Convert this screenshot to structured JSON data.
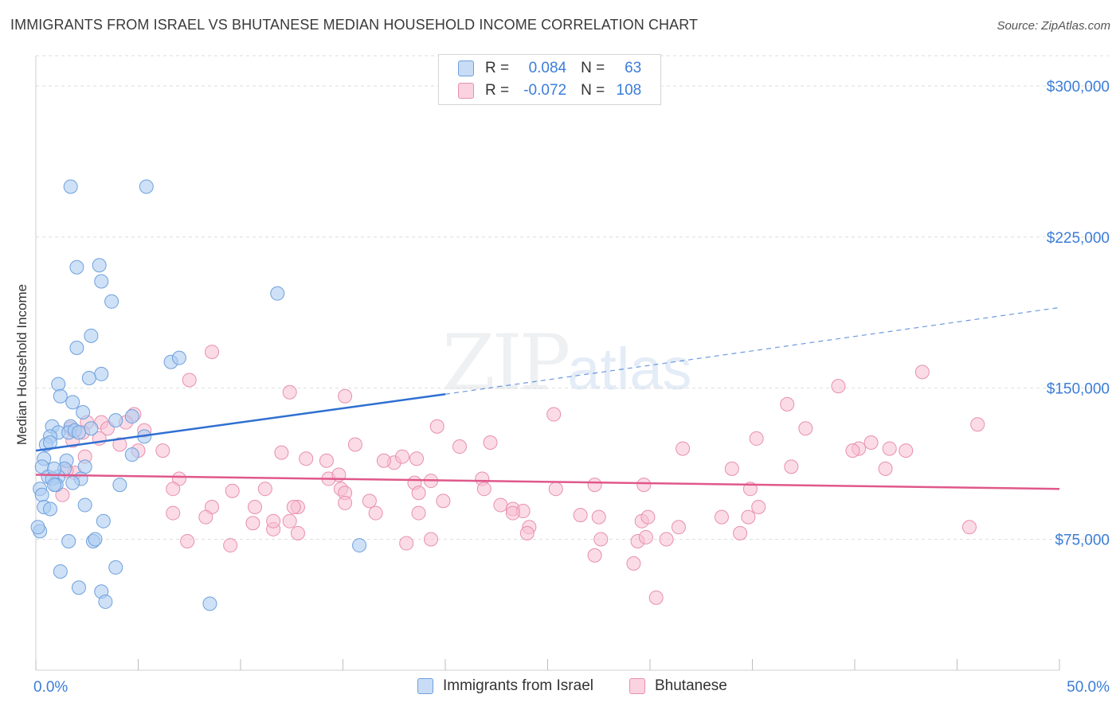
{
  "title": "IMMIGRANTS FROM ISRAEL VS BHUTANESE MEDIAN HOUSEHOLD INCOME CORRELATION CHART",
  "source": "Source: ZipAtlas.com",
  "watermark": {
    "zip": "ZIP",
    "atlas": "atlas"
  },
  "legend": {
    "rows": [
      {
        "r_label": "R =",
        "r_value": "0.084",
        "n_label": "N =",
        "n_value": "63"
      },
      {
        "r_label": "R =",
        "r_value": "-0.072",
        "n_label": "N =",
        "n_value": "108"
      }
    ]
  },
  "colors": {
    "israel_fill": "#aecdf2",
    "israel_stroke": "#6fa0dc",
    "israel_line": "#2f6fd1",
    "bhutanese_fill": "#f8c0d2",
    "bhutanese_stroke": "#e88fae",
    "bhutanese_line": "#e0588a",
    "tick_text": "#3b7dd8",
    "grid": "#dedede"
  },
  "chart_data": {
    "type": "scatter",
    "title": "IMMIGRANTS FROM ISRAEL VS BHUTANESE MEDIAN HOUSEHOLD INCOME CORRELATION CHART",
    "xlabel": "",
    "ylabel": "Median Household Income",
    "xlim": [
      0,
      50
    ],
    "ylim": [
      10000,
      315000
    ],
    "x_tick_labels": [
      "0.0%",
      "50.0%"
    ],
    "y_ticks": [
      75000,
      150000,
      225000,
      300000
    ],
    "y_tick_labels": [
      "$75,000",
      "$150,000",
      "$225,000",
      "$300,000"
    ],
    "grid": true,
    "legend_placement": "top-center",
    "series": [
      {
        "name": "Immigrants from Israel",
        "r": 0.084,
        "n": 63,
        "trend": {
          "x": [
            0,
            20,
            50
          ],
          "y": [
            119000,
            147000,
            190000
          ],
          "solid_until_x": 20
        },
        "points": [
          [
            1.7,
            250000
          ],
          [
            5.4,
            250000
          ],
          [
            2.0,
            210000
          ],
          [
            3.1,
            211000
          ],
          [
            3.2,
            203000
          ],
          [
            3.7,
            193000
          ],
          [
            11.8,
            197000
          ],
          [
            2.7,
            176000
          ],
          [
            2.0,
            170000
          ],
          [
            6.6,
            163000
          ],
          [
            7.0,
            165000
          ],
          [
            3.2,
            157000
          ],
          [
            2.6,
            155000
          ],
          [
            1.1,
            152000
          ],
          [
            1.2,
            146000
          ],
          [
            1.8,
            143000
          ],
          [
            2.3,
            138000
          ],
          [
            4.7,
            136000
          ],
          [
            3.9,
            134000
          ],
          [
            0.8,
            131000
          ],
          [
            1.7,
            131000
          ],
          [
            2.7,
            130000
          ],
          [
            1.1,
            128000
          ],
          [
            1.6,
            128000
          ],
          [
            1.9,
            129000
          ],
          [
            2.1,
            128000
          ],
          [
            0.7,
            126000
          ],
          [
            5.3,
            126000
          ],
          [
            0.5,
            122000
          ],
          [
            0.7,
            123000
          ],
          [
            4.7,
            117000
          ],
          [
            0.4,
            115000
          ],
          [
            1.5,
            114000
          ],
          [
            0.3,
            111000
          ],
          [
            1.4,
            110000
          ],
          [
            2.4,
            111000
          ],
          [
            0.6,
            106000
          ],
          [
            1.1,
            106000
          ],
          [
            0.8,
            105000
          ],
          [
            1.0,
            102000
          ],
          [
            2.2,
            105000
          ],
          [
            1.8,
            103000
          ],
          [
            4.1,
            102000
          ],
          [
            0.2,
            100000
          ],
          [
            0.3,
            97000
          ],
          [
            0.4,
            91000
          ],
          [
            0.7,
            90000
          ],
          [
            0.9,
            102000
          ],
          [
            2.4,
            92000
          ],
          [
            3.3,
            84000
          ],
          [
            1.6,
            74000
          ],
          [
            2.8,
            74000
          ],
          [
            2.9,
            75000
          ],
          [
            1.2,
            59000
          ],
          [
            3.9,
            61000
          ],
          [
            2.1,
            51000
          ],
          [
            3.2,
            49000
          ],
          [
            3.4,
            44000
          ],
          [
            8.5,
            43000
          ],
          [
            15.8,
            72000
          ],
          [
            0.2,
            79000
          ],
          [
            0.1,
            81000
          ],
          [
            0.9,
            110000
          ]
        ]
      },
      {
        "name": "Bhutanese",
        "r": -0.072,
        "n": 108,
        "trend": {
          "x": [
            0,
            50
          ],
          "y": [
            107000,
            100000
          ]
        },
        "points": [
          [
            8.6,
            168000
          ],
          [
            43.3,
            158000
          ],
          [
            7.5,
            154000
          ],
          [
            12.4,
            148000
          ],
          [
            15.1,
            146000
          ],
          [
            39.2,
            151000
          ],
          [
            36.7,
            142000
          ],
          [
            25.3,
            137000
          ],
          [
            46.0,
            132000
          ],
          [
            4.8,
            137000
          ],
          [
            2.5,
            133000
          ],
          [
            3.2,
            133000
          ],
          [
            4.4,
            133000
          ],
          [
            3.5,
            130000
          ],
          [
            1.7,
            130000
          ],
          [
            2.3,
            128000
          ],
          [
            5.3,
            129000
          ],
          [
            19.6,
            131000
          ],
          [
            37.6,
            130000
          ],
          [
            35.2,
            125000
          ],
          [
            40.8,
            123000
          ],
          [
            31.6,
            120000
          ],
          [
            40.2,
            120000
          ],
          [
            41.7,
            120000
          ],
          [
            42.5,
            119000
          ],
          [
            39.9,
            119000
          ],
          [
            22.2,
            123000
          ],
          [
            20.7,
            121000
          ],
          [
            15.6,
            122000
          ],
          [
            17.5,
            113000
          ],
          [
            3.1,
            125000
          ],
          [
            1.8,
            124000
          ],
          [
            5.0,
            119000
          ],
          [
            6.2,
            119000
          ],
          [
            12.0,
            118000
          ],
          [
            17.9,
            116000
          ],
          [
            18.6,
            115000
          ],
          [
            13.2,
            115000
          ],
          [
            14.2,
            114000
          ],
          [
            17.0,
            114000
          ],
          [
            36.9,
            111000
          ],
          [
            41.5,
            110000
          ],
          [
            34.0,
            110000
          ],
          [
            2.4,
            116000
          ],
          [
            4.1,
            122000
          ],
          [
            1.9,
            108000
          ],
          [
            1.5,
            109000
          ],
          [
            1.3,
            97000
          ],
          [
            7.0,
            105000
          ],
          [
            6.7,
            100000
          ],
          [
            11.2,
            100000
          ],
          [
            14.3,
            105000
          ],
          [
            14.9,
            100000
          ],
          [
            14.8,
            107000
          ],
          [
            15.1,
            98000
          ],
          [
            18.5,
            103000
          ],
          [
            19.3,
            104000
          ],
          [
            21.8,
            105000
          ],
          [
            21.9,
            100000
          ],
          [
            25.4,
            100000
          ],
          [
            27.3,
            102000
          ],
          [
            29.7,
            102000
          ],
          [
            34.9,
            100000
          ],
          [
            18.7,
            98000
          ],
          [
            19.9,
            94000
          ],
          [
            22.7,
            92000
          ],
          [
            23.3,
            90000
          ],
          [
            23.8,
            89000
          ],
          [
            18.7,
            88000
          ],
          [
            16.6,
            88000
          ],
          [
            16.3,
            94000
          ],
          [
            15.1,
            93000
          ],
          [
            12.8,
            91000
          ],
          [
            12.6,
            91000
          ],
          [
            10.7,
            91000
          ],
          [
            9.6,
            99000
          ],
          [
            8.6,
            91000
          ],
          [
            8.3,
            86000
          ],
          [
            10.6,
            83000
          ],
          [
            11.6,
            80000
          ],
          [
            11.6,
            84000
          ],
          [
            12.4,
            84000
          ],
          [
            6.7,
            88000
          ],
          [
            26.6,
            87000
          ],
          [
            27.5,
            86000
          ],
          [
            29.6,
            84000
          ],
          [
            29.9,
            86000
          ],
          [
            33.5,
            86000
          ],
          [
            35.3,
            91000
          ],
          [
            34.8,
            86000
          ],
          [
            45.6,
            81000
          ],
          [
            31.4,
            81000
          ],
          [
            23.3,
            88000
          ],
          [
            24.1,
            81000
          ],
          [
            7.4,
            74000
          ],
          [
            9.5,
            72000
          ],
          [
            12.8,
            78000
          ],
          [
            18.1,
            73000
          ],
          [
            19.3,
            75000
          ],
          [
            27.6,
            75000
          ],
          [
            27.3,
            67000
          ],
          [
            29.4,
            74000
          ],
          [
            29.8,
            76000
          ],
          [
            30.8,
            75000
          ],
          [
            34.4,
            78000
          ],
          [
            29.2,
            63000
          ],
          [
            30.3,
            46000
          ],
          [
            24.0,
            78000
          ]
        ]
      }
    ]
  },
  "bottom_legend": [
    "Immigrants from Israel",
    "Bhutanese"
  ]
}
